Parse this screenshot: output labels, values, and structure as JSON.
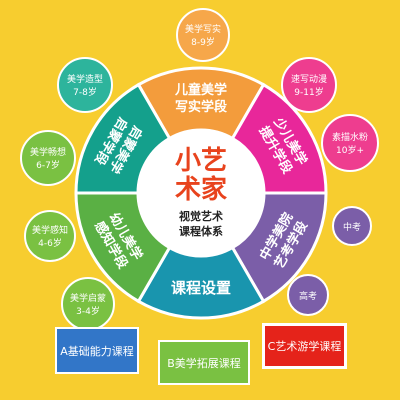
{
  "center": {
    "title_line1": "小艺",
    "title_line2": "术家",
    "subtitle_line1": "视觉艺术",
    "subtitle_line2": "课程体系"
  },
  "segments": [
    {
      "id": "children-aesthetics",
      "line1": "儿童美学",
      "line2": "写实学段",
      "color": "#f39c3c"
    },
    {
      "id": "teen-aesthetics",
      "line1": "少儿美学",
      "line2": "提升学段",
      "color": "#e8279a"
    },
    {
      "id": "middle-school-art-exam",
      "line1": "中学美院",
      "line2": "艺考学段",
      "color": "#7b5ea8"
    },
    {
      "id": "course-setup",
      "line1": "课程设置",
      "line2": "",
      "color": "#1995ae"
    },
    {
      "id": "preschool-perception",
      "line1": "幼儿美学",
      "line2": "感知学段",
      "color": "#5ab044"
    },
    {
      "id": "enlightenment-stage",
      "line1": "启蒙美学",
      "line2": "启蒙学段",
      "color": "#14a08c"
    }
  ],
  "age_bubbles": [
    {
      "id": "realistic",
      "line1": "美学写实",
      "line2": "8-9岁",
      "color": "#f6a74a"
    },
    {
      "id": "quick-sketch-anime",
      "line1": "速写动漫",
      "line2": "9-11岁",
      "color": "#ee3d8f"
    },
    {
      "id": "sketch-watercolor",
      "line1": "素描水粉",
      "line2": "10岁+",
      "color": "#ee3d8f"
    },
    {
      "id": "zhongkao",
      "line1": "中考",
      "line2": "",
      "color": "#7b5ea8"
    },
    {
      "id": "gaokao",
      "line1": "高考",
      "line2": "",
      "color": "#7b5ea8"
    },
    {
      "id": "modeling",
      "line1": "美学造型",
      "line2": "7-8岁",
      "color": "#2db49c"
    },
    {
      "id": "awareness",
      "line1": "美学畅想",
      "line2": "6-7岁",
      "color": "#7ac142"
    },
    {
      "id": "perception",
      "line1": "美学感知",
      "line2": "4-6岁",
      "color": "#7ac142"
    },
    {
      "id": "enlightenment",
      "line1": "美学启蒙",
      "line2": "3-4岁",
      "color": "#7ac142"
    }
  ],
  "course_boxes": {
    "a": "A基础能力课程",
    "b": "B美学拓展课程",
    "c": "C艺术游学课程"
  },
  "colors": {
    "background": "#f7cd2f",
    "center_title": "#e8431d",
    "center_fill": "#ffffff"
  }
}
